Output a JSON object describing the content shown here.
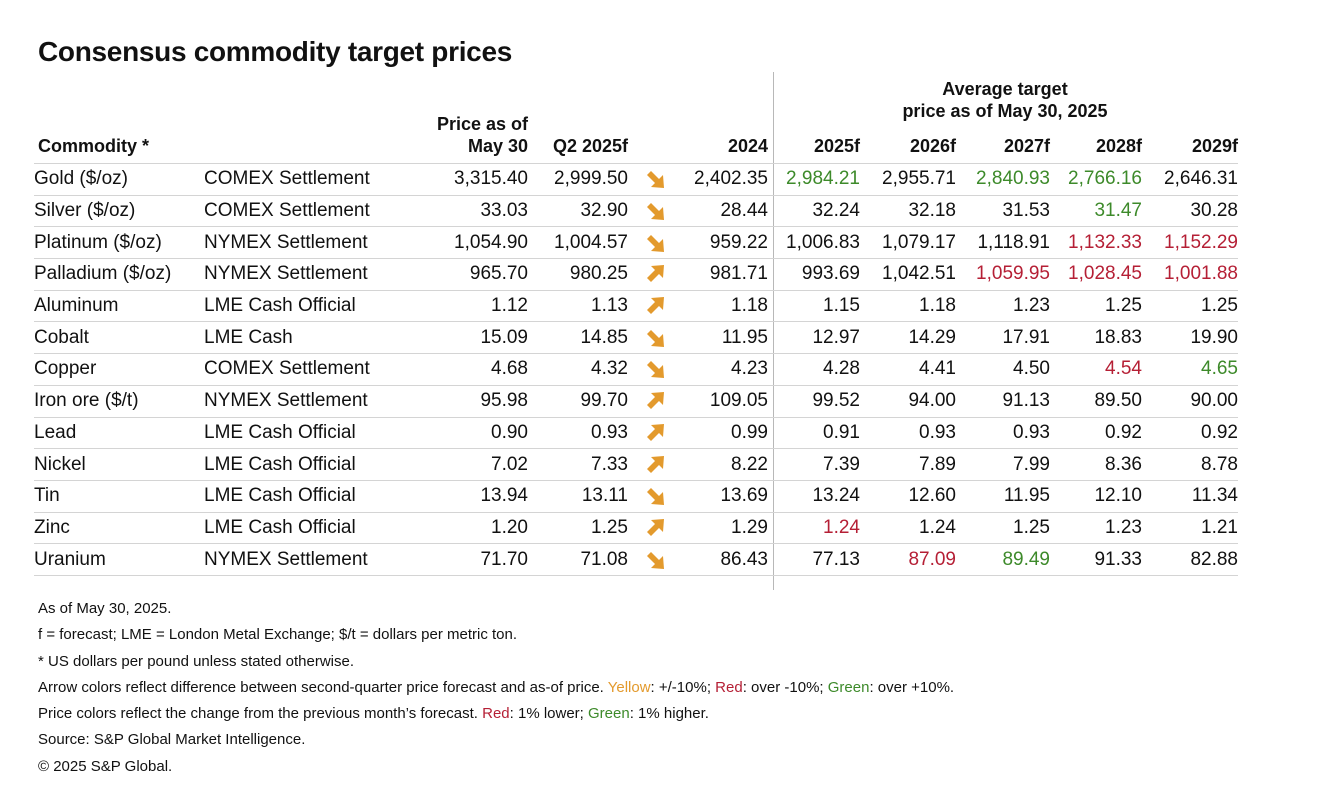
{
  "title": "Consensus commodity target prices",
  "group_header": [
    "Average target",
    "price as of May 30, 2025"
  ],
  "headers": {
    "commodity": "Commodity *",
    "price_line1": "Price as of",
    "price_line2": "May 30",
    "q2": "Q2 2025f",
    "y2024": "2024",
    "y2025": "2025f",
    "y2026": "2026f",
    "y2027": "2027f",
    "y2028": "2028f",
    "y2029": "2029f"
  },
  "colors": {
    "positive": "#3d8a2a",
    "negative": "#b51f35",
    "arrow_yellow": "#e39a2d"
  },
  "rows": [
    {
      "commodity": "Gold ($/oz)",
      "basis": "COMEX Settlement",
      "price": "3,315.40",
      "q2": "2,999.50",
      "arrow": "down",
      "arrow_color": "yellow",
      "y2024": "2,402.35",
      "forecasts": [
        {
          "v": "2,984.21",
          "c": "pos"
        },
        {
          "v": "2,955.71",
          "c": ""
        },
        {
          "v": "2,840.93",
          "c": "pos"
        },
        {
          "v": "2,766.16",
          "c": "pos"
        },
        {
          "v": "2,646.31",
          "c": ""
        }
      ]
    },
    {
      "commodity": "Silver ($/oz)",
      "basis": "COMEX Settlement",
      "price": "33.03",
      "q2": "32.90",
      "arrow": "down",
      "arrow_color": "yellow",
      "y2024": "28.44",
      "forecasts": [
        {
          "v": "32.24",
          "c": ""
        },
        {
          "v": "32.18",
          "c": ""
        },
        {
          "v": "31.53",
          "c": ""
        },
        {
          "v": "31.47",
          "c": "pos"
        },
        {
          "v": "30.28",
          "c": ""
        }
      ]
    },
    {
      "commodity": "Platinum ($/oz)",
      "basis": "NYMEX Settlement",
      "price": "1,054.90",
      "q2": "1,004.57",
      "arrow": "down",
      "arrow_color": "yellow",
      "y2024": "959.22",
      "forecasts": [
        {
          "v": "1,006.83",
          "c": ""
        },
        {
          "v": "1,079.17",
          "c": ""
        },
        {
          "v": "1,118.91",
          "c": ""
        },
        {
          "v": "1,132.33",
          "c": "neg"
        },
        {
          "v": "1,152.29",
          "c": "neg"
        }
      ]
    },
    {
      "commodity": "Palladium ($/oz)",
      "basis": "NYMEX Settlement",
      "price": "965.70",
      "q2": "980.25",
      "arrow": "up",
      "arrow_color": "yellow",
      "y2024": "981.71",
      "forecasts": [
        {
          "v": "993.69",
          "c": ""
        },
        {
          "v": "1,042.51",
          "c": ""
        },
        {
          "v": "1,059.95",
          "c": "neg"
        },
        {
          "v": "1,028.45",
          "c": "neg"
        },
        {
          "v": "1,001.88",
          "c": "neg"
        }
      ]
    },
    {
      "commodity": "Aluminum",
      "basis": "LME Cash Official",
      "price": "1.12",
      "q2": "1.13",
      "arrow": "up",
      "arrow_color": "yellow",
      "y2024": "1.18",
      "forecasts": [
        {
          "v": "1.15",
          "c": ""
        },
        {
          "v": "1.18",
          "c": ""
        },
        {
          "v": "1.23",
          "c": ""
        },
        {
          "v": "1.25",
          "c": ""
        },
        {
          "v": "1.25",
          "c": ""
        }
      ]
    },
    {
      "commodity": "Cobalt",
      "basis": "LME Cash",
      "price": "15.09",
      "q2": "14.85",
      "arrow": "down",
      "arrow_color": "yellow",
      "y2024": "11.95",
      "forecasts": [
        {
          "v": "12.97",
          "c": ""
        },
        {
          "v": "14.29",
          "c": ""
        },
        {
          "v": "17.91",
          "c": ""
        },
        {
          "v": "18.83",
          "c": ""
        },
        {
          "v": "19.90",
          "c": ""
        }
      ]
    },
    {
      "commodity": "Copper",
      "basis": "COMEX Settlement",
      "price": "4.68",
      "q2": "4.32",
      "arrow": "down",
      "arrow_color": "yellow",
      "y2024": "4.23",
      "forecasts": [
        {
          "v": "4.28",
          "c": ""
        },
        {
          "v": "4.41",
          "c": ""
        },
        {
          "v": "4.50",
          "c": ""
        },
        {
          "v": "4.54",
          "c": "neg"
        },
        {
          "v": "4.65",
          "c": "pos"
        }
      ]
    },
    {
      "commodity": "Iron ore ($/t)",
      "basis": "NYMEX Settlement",
      "price": "95.98",
      "q2": "99.70",
      "arrow": "up",
      "arrow_color": "yellow",
      "y2024": "109.05",
      "forecasts": [
        {
          "v": "99.52",
          "c": ""
        },
        {
          "v": "94.00",
          "c": ""
        },
        {
          "v": "91.13",
          "c": ""
        },
        {
          "v": "89.50",
          "c": ""
        },
        {
          "v": "90.00",
          "c": ""
        }
      ]
    },
    {
      "commodity": "Lead",
      "basis": "LME Cash Official",
      "price": "0.90",
      "q2": "0.93",
      "arrow": "up",
      "arrow_color": "yellow",
      "y2024": "0.99",
      "forecasts": [
        {
          "v": "0.91",
          "c": ""
        },
        {
          "v": "0.93",
          "c": ""
        },
        {
          "v": "0.93",
          "c": ""
        },
        {
          "v": "0.92",
          "c": ""
        },
        {
          "v": "0.92",
          "c": ""
        }
      ]
    },
    {
      "commodity": "Nickel",
      "basis": "LME Cash Official",
      "price": "7.02",
      "q2": "7.33",
      "arrow": "up",
      "arrow_color": "yellow",
      "y2024": "8.22",
      "forecasts": [
        {
          "v": "7.39",
          "c": ""
        },
        {
          "v": "7.89",
          "c": ""
        },
        {
          "v": "7.99",
          "c": ""
        },
        {
          "v": "8.36",
          "c": ""
        },
        {
          "v": "8.78",
          "c": ""
        }
      ]
    },
    {
      "commodity": "Tin",
      "basis": "LME Cash Official",
      "price": "13.94",
      "q2": "13.11",
      "arrow": "down",
      "arrow_color": "yellow",
      "y2024": "13.69",
      "forecasts": [
        {
          "v": "13.24",
          "c": ""
        },
        {
          "v": "12.60",
          "c": ""
        },
        {
          "v": "11.95",
          "c": ""
        },
        {
          "v": "12.10",
          "c": ""
        },
        {
          "v": "11.34",
          "c": ""
        }
      ]
    },
    {
      "commodity": "Zinc",
      "basis": "LME Cash Official",
      "price": "1.20",
      "q2": "1.25",
      "arrow": "up",
      "arrow_color": "yellow",
      "y2024": "1.29",
      "forecasts": [
        {
          "v": "1.24",
          "c": "neg"
        },
        {
          "v": "1.24",
          "c": ""
        },
        {
          "v": "1.25",
          "c": ""
        },
        {
          "v": "1.23",
          "c": ""
        },
        {
          "v": "1.21",
          "c": ""
        }
      ]
    },
    {
      "commodity": "Uranium",
      "basis": "NYMEX Settlement",
      "price": "71.70",
      "q2": "71.08",
      "arrow": "down",
      "arrow_color": "yellow",
      "y2024": "86.43",
      "forecasts": [
        {
          "v": "77.13",
          "c": ""
        },
        {
          "v": "87.09",
          "c": "neg"
        },
        {
          "v": "89.49",
          "c": "pos"
        },
        {
          "v": "91.33",
          "c": ""
        },
        {
          "v": "82.88",
          "c": ""
        }
      ]
    }
  ],
  "footnotes": {
    "asof": "As of May 30, 2025.",
    "abbrev": "f = forecast; LME = London Metal Exchange; $/t = dollars per metric ton.",
    "units": "* US dollars per pound unless stated otherwise.",
    "arrow_prefix": "Arrow colors reflect difference between second-quarter price forecast and as-of price. ",
    "arrow_yellow": "Yellow",
    "arrow_yellow_desc": ": +/-10%; ",
    "arrow_red": "Red",
    "arrow_red_desc": ": over -10%; ",
    "arrow_green": "Green",
    "arrow_green_desc": ": over +10%.",
    "price_prefix": "Price colors reflect the change from the previous month’s forecast. ",
    "price_red": "Red",
    "price_red_desc": ": 1% lower; ",
    "price_green": "Green",
    "price_green_desc": ": 1% higher.",
    "source": "Source: S&P Global Market Intelligence.",
    "copyright": "© 2025 S&P Global."
  }
}
